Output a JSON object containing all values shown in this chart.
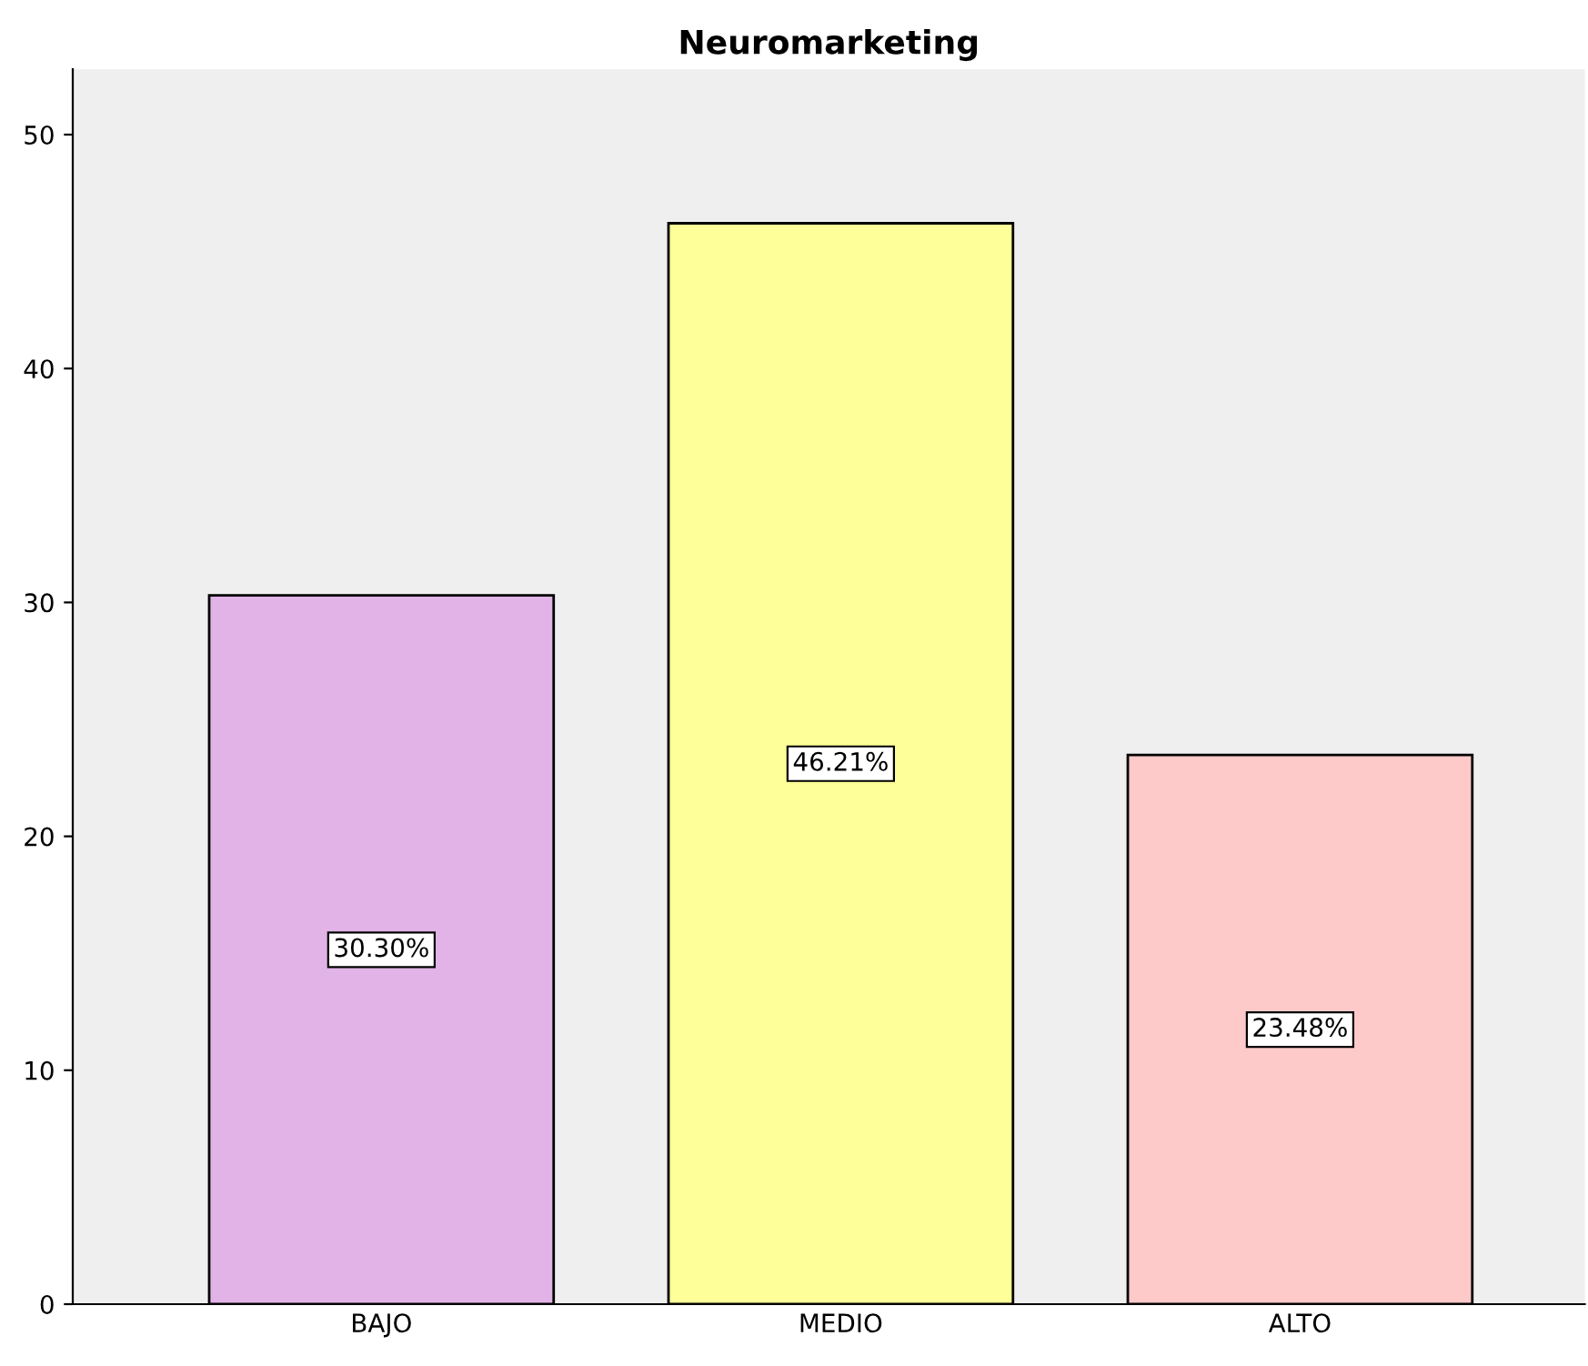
{
  "chart_data": {
    "type": "bar",
    "title": "Neuromarketing",
    "categories": [
      "BAJO",
      "MEDIO",
      "ALTO"
    ],
    "values": [
      30.3,
      46.21,
      23.48
    ],
    "colors": [
      "#e1b3e6",
      "#ffff99",
      "#fdc9c9"
    ],
    "value_labels": [
      "30.30%",
      "46.21%",
      "23.48%"
    ],
    "ylim": [
      0,
      52.8
    ],
    "yticks": [
      0,
      10,
      20,
      30,
      40,
      50
    ],
    "grid": false,
    "legend": false
  }
}
